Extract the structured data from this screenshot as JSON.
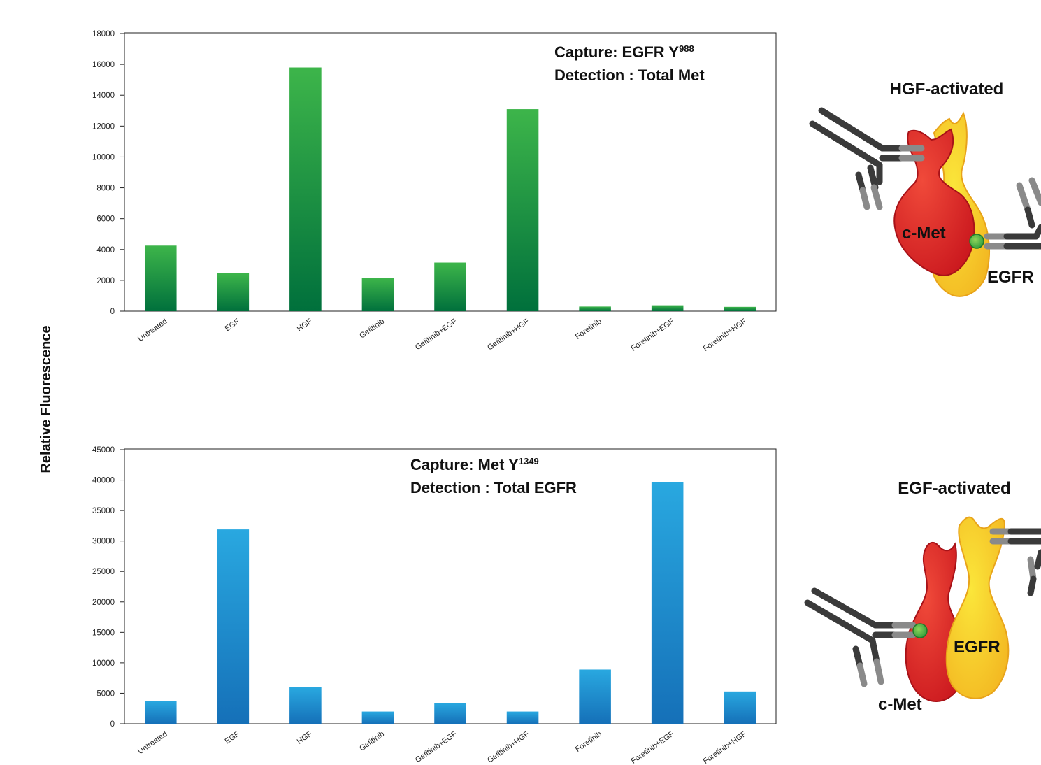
{
  "shared_ylabel": "Relative Fluorescence",
  "chart_data": [
    {
      "type": "bar",
      "categories": [
        "Untreated",
        "EGF",
        "HGF",
        "Gefitinib",
        "Gefitinib+EGF",
        "Gefitinib+HGF",
        "Foretinib",
        "Foretinib+EGF",
        "Foretinib+HGF"
      ],
      "values": [
        4250,
        2450,
        15800,
        2150,
        3150,
        13100,
        300,
        380,
        280
      ],
      "ylim": [
        0,
        18000
      ],
      "yticks": [
        0,
        2000,
        4000,
        6000,
        8000,
        10000,
        12000,
        14000,
        16000,
        18000
      ],
      "annotation": {
        "line1": "Capture: EGFR Y",
        "line1_sup": "988",
        "line2": "Detection : Total Met"
      },
      "bar_color_top": "#3db54a",
      "bar_color_bottom": "#00703c",
      "grid": false
    },
    {
      "type": "bar",
      "categories": [
        "Untreated",
        "EGF",
        "HGF",
        "Gefitinib",
        "Gefitinib+EGF",
        "Gefitinib+HGF",
        "Foretinib",
        "Foretinib+EGF",
        "Foretinib+HGF"
      ],
      "values": [
        3700,
        31900,
        6000,
        2000,
        3400,
        2000,
        8900,
        39700,
        5300
      ],
      "ylim": [
        0,
        45000
      ],
      "yticks": [
        0,
        5000,
        10000,
        15000,
        20000,
        25000,
        30000,
        35000,
        40000,
        45000
      ],
      "annotation": {
        "line1": "Capture: Met Y",
        "line1_sup": "1349",
        "line2": "Detection : Total EGFR"
      },
      "bar_color_top": "#29a8e0",
      "bar_color_bottom": "#1570b8",
      "grid": false
    }
  ],
  "illustrations": [
    {
      "title": "HGF-activated",
      "met_label": "c-Met",
      "egfr_label": "EGFR"
    },
    {
      "title": "EGF-activated",
      "met_label": "c-Met",
      "egfr_label": "EGFR"
    }
  ],
  "colors": {
    "met_red": "#e0262b",
    "egfr_yellow": "#f6d21f",
    "antibody_dark": "#3a3a3a",
    "antibody_light": "#8a8a8a",
    "phospho_green": "#3ab54a"
  }
}
